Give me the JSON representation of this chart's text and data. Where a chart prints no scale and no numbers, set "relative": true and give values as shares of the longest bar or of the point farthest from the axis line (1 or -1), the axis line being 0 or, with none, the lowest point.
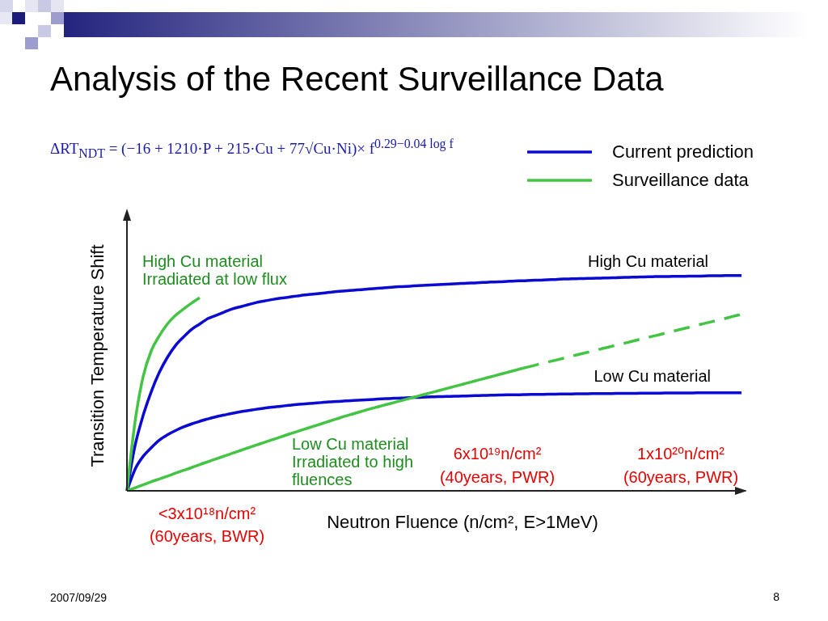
{
  "chart_data": {
    "type": "line",
    "title": "Analysis of the Recent Surveillance Data",
    "subtitle": "ΔRT$_{NDT}$ = (−16 + 1210·P + 215·Cu + 77√Cu·Ni)× f$^{0.29−0.04 log f}$",
    "xlabel": "Neutron Fluence (n/cm², E>1MeV)",
    "ylabel": "Transition Temperature Shift",
    "relative": true,
    "legend": "top right",
    "categories": [
      null,
      null,
      null,
      null,
      null,
      null,
      null,
      null,
      null,
      null,
      null,
      null,
      null,
      null,
      null,
      null,
      null,
      null,
      null,
      null,
      null,
      null,
      null,
      null,
      null,
      null,
      null,
      null,
      null,
      null,
      null,
      null,
      null,
      null,
      null,
      null,
      null,
      null,
      null,
      null,
      null,
      null,
      null,
      null,
      null,
      null,
      null,
      null,
      null,
      null,
      null,
      null,
      null,
      null,
      null,
      null,
      null,
      null,
      null,
      null,
      null,
      null,
      null,
      null,
      null,
      null,
      null,
      null,
      null,
      null,
      null,
      null,
      null,
      null,
      null,
      null,
      null
    ],
    "series": [
      {
        "name": "Current prediction",
        "color": "#0a0ad2",
        "values": [
          0,
          0.21,
          0.35,
          0.46,
          0.55,
          0.62,
          0.675,
          0.715,
          0.75,
          0.775,
          0.8,
          0.815,
          0.83,
          0.845,
          0.855,
          0.865,
          0.875,
          0.882,
          0.889,
          0.895,
          0.9,
          0.905,
          0.91,
          0.914,
          0.918,
          0.922,
          0.926,
          0.929,
          0.932,
          0.935,
          0.938,
          0.941,
          0.944,
          0.947,
          0.949,
          0.951,
          0.953,
          0.955,
          0.957,
          0.959,
          0.961,
          0.963,
          0.965,
          0.966,
          0.968,
          0.97,
          0.971,
          0.973,
          0.975,
          0.976,
          0.978,
          0.979,
          0.981,
          0.982,
          0.984,
          0.985,
          0.986,
          0.987,
          0.988,
          0.989,
          0.99,
          0.991,
          0.992,
          0.993,
          0.994,
          0.995,
          0.996,
          0.996,
          0.997,
          0.997,
          0.998,
          0.998,
          0.999,
          0.999,
          1,
          1,
          1
        ]
      },
      {
        "color": "#0a0ad2",
        "values": [
          0,
          0.1,
          0.16,
          0.2,
          0.235,
          0.26,
          0.28,
          0.297,
          0.311,
          0.323,
          0.334,
          0.344,
          0.352,
          0.36,
          0.367,
          0.373,
          0.379,
          0.384,
          0.389,
          0.393,
          0.397,
          0.401,
          0.404,
          0.407,
          0.41,
          0.413,
          0.415,
          0.418,
          0.42,
          0.422,
          0.424,
          0.426,
          0.428,
          0.43,
          0.431,
          0.433,
          0.434,
          0.436,
          0.437,
          0.438,
          0.439,
          0.44,
          0.441,
          0.442,
          0.443,
          0.444,
          0.445,
          0.446,
          0.446,
          0.447,
          0.448,
          0.448,
          0.449,
          0.449,
          0.45,
          0.45,
          0.451,
          0.451,
          0.452,
          0.452,
          0.452,
          0.453,
          0.453,
          0.453,
          0.454,
          0.454,
          0.454,
          0.455,
          0.455,
          0.455,
          0.455,
          0.456,
          0.456,
          0.456,
          0.456,
          0.456,
          0.456
        ]
      },
      {
        "name": "Surveillance data",
        "color": "#44c444",
        "values": [
          0,
          0.32,
          0.53,
          0.65,
          0.72,
          0.775,
          0.815,
          0.845,
          0.872,
          0.897,
          null,
          null,
          null,
          null,
          null,
          null,
          null,
          null,
          null,
          null,
          null,
          null,
          null,
          null,
          null,
          null,
          null,
          null,
          null,
          null,
          null,
          null,
          null,
          null,
          null,
          null,
          null,
          null,
          null,
          null,
          null,
          null,
          null,
          null,
          null,
          null,
          null,
          null,
          null,
          null,
          null,
          null,
          null,
          null,
          null,
          null,
          null,
          null,
          null,
          null,
          null,
          null,
          null,
          null,
          null,
          null,
          null,
          null,
          null,
          null,
          null,
          null,
          null,
          null,
          null,
          null,
          null
        ]
      },
      {
        "color": "#44c444",
        "values": [
          0,
          0.014,
          0.028,
          0.042,
          0.055,
          0.068,
          0.082,
          0.095,
          0.108,
          0.122,
          0.135,
          0.148,
          0.161,
          0.174,
          0.187,
          0.2,
          0.213,
          0.225,
          0.238,
          0.25,
          0.263,
          0.275,
          0.287,
          0.299,
          0.311,
          0.323,
          0.335,
          0.347,
          0.358,
          0.369,
          0.38,
          0.39,
          0.4,
          0.41,
          0.42,
          0.43,
          0.44,
          0.45,
          0.46,
          0.47,
          0.48,
          0.49,
          0.5,
          0.51,
          0.52,
          0.53,
          0.54,
          0.55,
          0.56,
          0.57,
          null,
          null,
          null,
          null,
          null,
          null,
          null,
          null,
          null,
          null,
          null,
          null,
          null,
          null,
          null,
          null,
          null,
          null,
          null,
          null,
          null,
          null,
          null,
          null,
          null,
          null,
          null
        ]
      },
      {
        "color": "#44c444",
        "line_style": "dashed",
        "values": [
          null,
          null,
          null,
          null,
          null,
          null,
          null,
          null,
          null,
          null,
          null,
          null,
          null,
          null,
          null,
          null,
          null,
          null,
          null,
          null,
          null,
          null,
          null,
          null,
          null,
          null,
          null,
          null,
          null,
          null,
          null,
          null,
          null,
          null,
          null,
          null,
          null,
          null,
          null,
          null,
          null,
          null,
          null,
          null,
          null,
          null,
          null,
          null,
          null,
          0.57,
          0.579,
          0.589,
          0.598,
          0.607,
          0.616,
          0.626,
          0.635,
          0.644,
          0.653,
          0.663,
          0.672,
          0.681,
          0.69,
          0.7,
          0.709,
          0.718,
          0.727,
          0.737,
          0.746,
          0.755,
          0.764,
          0.774,
          0.783,
          0.792,
          0.801,
          0.811,
          0.82
        ]
      }
    ],
    "annotations": [
      "High Cu material\nIrradiated at low flux",
      "High Cu material",
      "Low Cu material",
      "Low Cu material\nIrradiated to high\nfluences",
      "6x10¹⁹n/cm²\n(40years, PWR)",
      "1x10²⁰n/cm²\n(60years, PWR)",
      "<3x10¹⁸n/cm²\n(60years, BWR)",
      "2007/09/29",
      "8"
    ]
  }
}
